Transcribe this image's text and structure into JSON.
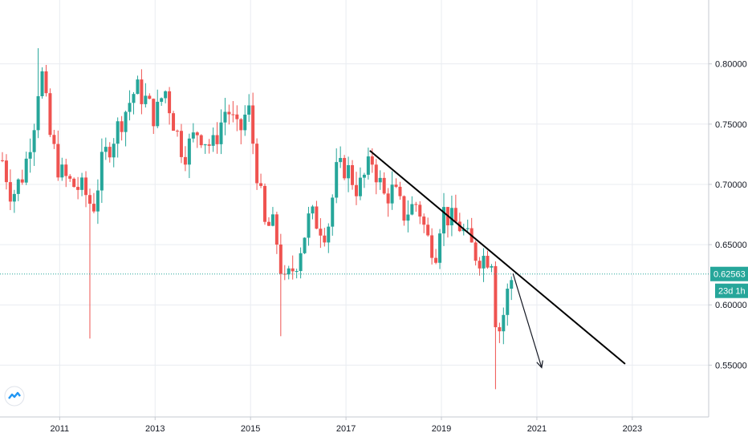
{
  "chart_data": {
    "type": "candlestick",
    "timeframe": "monthly",
    "x_tick_labels": [
      "2011",
      "2013",
      "2015",
      "2017",
      "2019",
      "2021",
      "2023"
    ],
    "y_tick_labels": [
      "0.80000",
      "0.75000",
      "0.70000",
      "0.65000",
      "0.60000",
      "0.55000"
    ],
    "y_ticks": [
      0.8,
      0.75,
      0.7,
      0.65,
      0.6,
      0.55
    ],
    "x_ticks": [
      2011,
      2013,
      2015,
      2017,
      2019,
      2021,
      2023
    ],
    "xlim": [
      2009.75,
      2024.6
    ],
    "ylim": [
      0.507,
      0.853
    ],
    "grid": true,
    "last_price": 0.62563,
    "last_price_label": "0.62563",
    "countdown_label": "23d 1h",
    "colors": {
      "up": "#26a69a",
      "down": "#ef5350",
      "last_price": "#26a69a",
      "trendline": "#000000",
      "grid": "#e9ecf1"
    },
    "trendline": {
      "start": {
        "x": 2017.5,
        "y": 0.728
      },
      "end": {
        "x": 2022.85,
        "y": 0.551
      }
    },
    "projection_arrow": {
      "start": {
        "x": 2020.5,
        "y": 0.626
      },
      "end": {
        "x": 2021.1,
        "y": 0.548
      }
    },
    "anchor_closes": [
      [
        2009.8,
        0.72
      ],
      [
        2010.0,
        0.69
      ],
      [
        2010.25,
        0.71
      ],
      [
        2010.5,
        0.76
      ],
      [
        2010.6,
        0.8
      ],
      [
        2010.8,
        0.74
      ],
      [
        2011.0,
        0.71
      ],
      [
        2011.25,
        0.7
      ],
      [
        2011.5,
        0.695
      ],
      [
        2011.7,
        0.68
      ],
      [
        2011.9,
        0.72
      ],
      [
        2012.25,
        0.75
      ],
      [
        2012.6,
        0.78
      ],
      [
        2012.8,
        0.77
      ],
      [
        2013.0,
        0.755
      ],
      [
        2013.2,
        0.78
      ],
      [
        2013.4,
        0.75
      ],
      [
        2013.6,
        0.725
      ],
      [
        2013.9,
        0.745
      ],
      [
        2014.2,
        0.73
      ],
      [
        2014.5,
        0.765
      ],
      [
        2014.75,
        0.74
      ],
      [
        2014.95,
        0.765
      ],
      [
        2015.1,
        0.72
      ],
      [
        2015.3,
        0.665
      ],
      [
        2015.5,
        0.665
      ],
      [
        2015.7,
        0.615
      ],
      [
        2015.95,
        0.635
      ],
      [
        2016.25,
        0.675
      ],
      [
        2016.6,
        0.66
      ],
      [
        2016.8,
        0.71
      ],
      [
        2017.0,
        0.715
      ],
      [
        2017.25,
        0.695
      ],
      [
        2017.55,
        0.72
      ],
      [
        2017.8,
        0.69
      ],
      [
        2018.0,
        0.695
      ],
      [
        2018.2,
        0.675
      ],
      [
        2018.5,
        0.685
      ],
      [
        2018.7,
        0.655
      ],
      [
        2018.9,
        0.645
      ],
      [
        2019.0,
        0.68
      ],
      [
        2019.2,
        0.67
      ],
      [
        2019.4,
        0.665
      ],
      [
        2019.6,
        0.65
      ],
      [
        2019.75,
        0.64
      ],
      [
        2019.95,
        0.64
      ],
      [
        2020.05,
        0.64
      ],
      [
        2020.15,
        0.58
      ],
      [
        2020.25,
        0.58
      ],
      [
        2020.35,
        0.605
      ],
      [
        2020.5,
        0.626
      ]
    ]
  }
}
